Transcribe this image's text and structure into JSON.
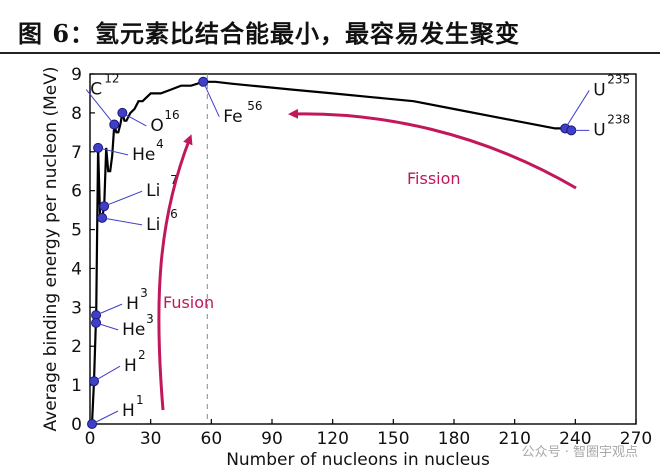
{
  "title": "图 6：氢元素比结合能最小，最容易发生聚变",
  "watermark": "公众号 · 智圈宇观点",
  "chart_data": {
    "type": "line",
    "xlabel": "Number of nucleons in nucleus",
    "ylabel": "Average binding energy per nucleon (MeV)",
    "xlim": [
      0,
      270
    ],
    "ylim": [
      0,
      9
    ],
    "xticks": [
      0,
      30,
      60,
      90,
      120,
      150,
      180,
      210,
      240,
      270
    ],
    "yticks": [
      0,
      1,
      2,
      3,
      4,
      5,
      6,
      7,
      8,
      9
    ],
    "grid": false,
    "curve": {
      "x": [
        1,
        2,
        3,
        3,
        4,
        5,
        6,
        7,
        8,
        9,
        10,
        11,
        12,
        13,
        14,
        15,
        16,
        17,
        18,
        20,
        22,
        24,
        26,
        28,
        30,
        32,
        35,
        40,
        45,
        50,
        56,
        62,
        70,
        80,
        90,
        100,
        120,
        140,
        160,
        180,
        200,
        210,
        220,
        230,
        235,
        238
      ],
      "y": [
        0,
        1.1,
        2.8,
        2.6,
        7.1,
        5.3,
        5.3,
        5.6,
        7.1,
        6.5,
        6.5,
        6.9,
        7.7,
        7.5,
        7.5,
        7.7,
        8.0,
        7.8,
        7.8,
        8.0,
        8.1,
        8.3,
        8.3,
        8.4,
        8.5,
        8.5,
        8.5,
        8.6,
        8.7,
        8.7,
        8.8,
        8.8,
        8.75,
        8.7,
        8.65,
        8.6,
        8.5,
        8.4,
        8.3,
        8.1,
        7.9,
        7.8,
        7.7,
        7.6,
        7.6,
        7.6
      ]
    },
    "points": [
      {
        "label": "H",
        "mass": "1",
        "x": 1,
        "y": 0
      },
      {
        "label": "H",
        "mass": "2",
        "x": 2,
        "y": 1.1
      },
      {
        "label": "H",
        "mass": "3",
        "x": 3,
        "y": 2.8
      },
      {
        "label": "He",
        "mass": "3",
        "x": 3,
        "y": 2.6
      },
      {
        "label": "He",
        "mass": "4",
        "x": 4,
        "y": 7.1
      },
      {
        "label": "Li",
        "mass": "6",
        "x": 6,
        "y": 5.3
      },
      {
        "label": "Li",
        "mass": "7",
        "x": 7,
        "y": 5.6
      },
      {
        "label": "C",
        "mass": "12",
        "x": 12,
        "y": 7.7
      },
      {
        "label": "O",
        "mass": "16",
        "x": 16,
        "y": 8.0
      },
      {
        "label": "Fe",
        "mass": "56",
        "x": 56,
        "y": 8.8
      },
      {
        "label": "U",
        "mass": "235",
        "x": 235,
        "y": 7.6
      },
      {
        "label": "U",
        "mass": "238",
        "x": 238,
        "y": 7.55
      }
    ],
    "reference_line_x": 58,
    "annotations": [
      {
        "text": "Fusion",
        "color": "#c2185b"
      },
      {
        "text": "Fission",
        "color": "#c2185b"
      }
    ],
    "series_color": "#000000",
    "point_color": "#3f3fc8",
    "arrow_color": "#c2185b"
  }
}
